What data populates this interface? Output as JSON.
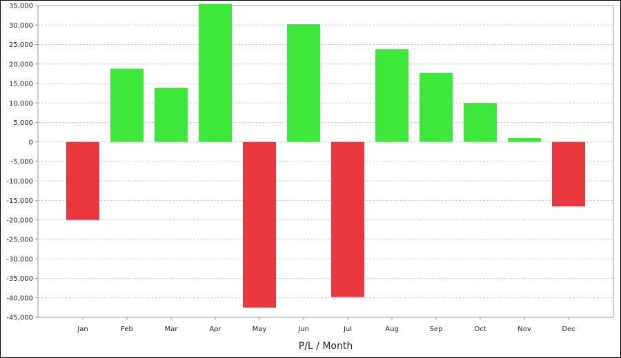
{
  "chart_data": {
    "type": "bar",
    "categories": [
      "Jan",
      "Feb",
      "Mar",
      "Apr",
      "May",
      "Jun",
      "Jul",
      "Aug",
      "Sep",
      "Oct",
      "Nov",
      "Dec"
    ],
    "values": [
      -20000,
      18800,
      13900,
      35400,
      -42500,
      30200,
      -39800,
      23800,
      17700,
      10000,
      1000,
      -16500
    ],
    "xlabel": "P/L / Month",
    "ylabel": "",
    "ylim": [
      -45000,
      35000
    ],
    "yticks": [
      35000,
      30000,
      25000,
      20000,
      15000,
      10000,
      5000,
      0,
      -5000,
      -10000,
      -15000,
      -20000,
      -25000,
      -30000,
      -35000,
      -40000,
      -45000
    ],
    "ytick_labels": [
      "35,000",
      "30,000",
      "25,000",
      "20,000",
      "15,000",
      "10,000",
      "5,000",
      "0",
      "-5,000",
      "-10,000",
      "-15,000",
      "-20,000",
      "-25,000",
      "-30,000",
      "-35,000",
      "-40,000",
      "-45,000"
    ],
    "grid": true,
    "colors": {
      "positive": "#3de83b",
      "negative": "#e8383d",
      "grid": "#cccccc",
      "axis": "#999999"
    }
  }
}
